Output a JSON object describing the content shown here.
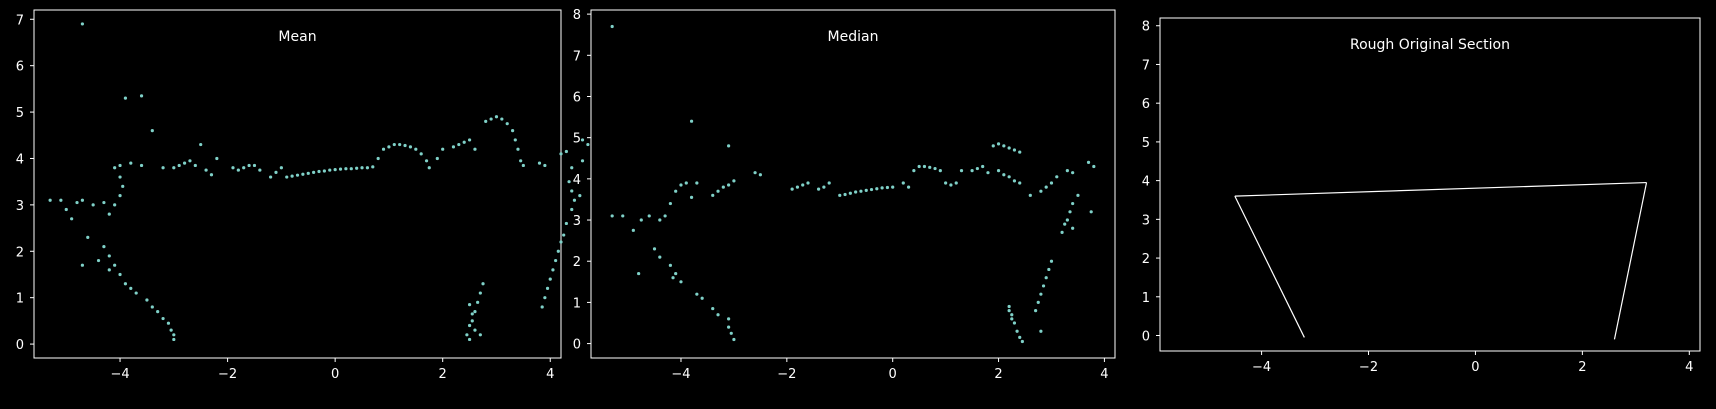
{
  "colors": {
    "background": "#000000",
    "axes": "#ffffff",
    "points": "#7fd1c8",
    "lines": "#ffffff"
  },
  "chart_data": [
    {
      "type": "scatter",
      "title": "Mean",
      "xlim": [
        -5.6,
        4.2
      ],
      "ylim": [
        -0.3,
        7.2
      ],
      "xticks": [
        -4,
        -2,
        0,
        2,
        4
      ],
      "yticks": [
        0,
        1,
        2,
        3,
        4,
        5,
        6,
        7
      ],
      "grid": false,
      "series": [
        {
          "points": [
            [
              -4.7,
              6.9
            ],
            [
              -3.9,
              5.3
            ],
            [
              -3.6,
              5.35
            ],
            [
              -3.4,
              4.6
            ],
            [
              -5.3,
              3.1
            ],
            [
              -5.1,
              3.1
            ],
            [
              -5.0,
              2.9
            ],
            [
              -4.9,
              2.7
            ],
            [
              -4.8,
              3.05
            ],
            [
              -4.7,
              3.1
            ],
            [
              -4.5,
              3.0
            ],
            [
              -4.3,
              3.05
            ],
            [
              -4.2,
              2.8
            ],
            [
              -4.1,
              3.0
            ],
            [
              -4.0,
              3.2
            ],
            [
              -3.95,
              3.4
            ],
            [
              -4.0,
              3.6
            ],
            [
              -4.1,
              3.8
            ],
            [
              -4.0,
              3.85
            ],
            [
              -3.8,
              3.9
            ],
            [
              -3.6,
              3.85
            ],
            [
              -4.6,
              2.3
            ],
            [
              -4.7,
              1.7
            ],
            [
              -4.4,
              1.8
            ],
            [
              -4.3,
              2.1
            ],
            [
              -4.2,
              1.9
            ],
            [
              -4.1,
              1.7
            ],
            [
              -4.0,
              1.5
            ],
            [
              -4.2,
              1.6
            ],
            [
              -3.9,
              1.3
            ],
            [
              -3.8,
              1.2
            ],
            [
              -3.7,
              1.1
            ],
            [
              -3.5,
              0.95
            ],
            [
              -3.4,
              0.8
            ],
            [
              -3.3,
              0.7
            ],
            [
              -3.2,
              0.55
            ],
            [
              -3.1,
              0.45
            ],
            [
              -3.05,
              0.3
            ],
            [
              -3.0,
              0.2
            ],
            [
              -3.0,
              0.1
            ],
            [
              -3.2,
              3.8
            ],
            [
              -3.0,
              3.8
            ],
            [
              -2.9,
              3.85
            ],
            [
              -2.8,
              3.9
            ],
            [
              -2.7,
              3.95
            ],
            [
              -2.6,
              3.85
            ],
            [
              -2.4,
              3.75
            ],
            [
              -2.3,
              3.65
            ],
            [
              -2.5,
              4.3
            ],
            [
              -2.2,
              4.0
            ],
            [
              -1.9,
              3.8
            ],
            [
              -1.8,
              3.75
            ],
            [
              -1.7,
              3.8
            ],
            [
              -1.6,
              3.85
            ],
            [
              -1.5,
              3.85
            ],
            [
              -1.4,
              3.75
            ],
            [
              -1.2,
              3.6
            ],
            [
              -1.1,
              3.7
            ],
            [
              -1.0,
              3.8
            ],
            [
              -0.9,
              3.6
            ],
            [
              -0.8,
              3.62
            ],
            [
              -0.7,
              3.64
            ],
            [
              -0.6,
              3.66
            ],
            [
              -0.5,
              3.68
            ],
            [
              -0.4,
              3.7
            ],
            [
              -0.3,
              3.72
            ],
            [
              -0.2,
              3.73
            ],
            [
              -0.1,
              3.75
            ],
            [
              0.0,
              3.76
            ],
            [
              0.1,
              3.77
            ],
            [
              0.2,
              3.78
            ],
            [
              0.3,
              3.78
            ],
            [
              0.4,
              3.79
            ],
            [
              0.5,
              3.8
            ],
            [
              0.6,
              3.8
            ],
            [
              0.7,
              3.82
            ],
            [
              0.8,
              4.0
            ],
            [
              0.9,
              4.2
            ],
            [
              1.0,
              4.25
            ],
            [
              1.1,
              4.3
            ],
            [
              1.2,
              4.3
            ],
            [
              1.3,
              4.28
            ],
            [
              1.4,
              4.25
            ],
            [
              1.5,
              4.2
            ],
            [
              1.6,
              4.1
            ],
            [
              1.7,
              3.95
            ],
            [
              1.75,
              3.8
            ],
            [
              2.0,
              4.2
            ],
            [
              2.2,
              4.25
            ],
            [
              2.3,
              4.3
            ],
            [
              2.4,
              4.35
            ],
            [
              2.5,
              4.4
            ],
            [
              2.6,
              4.2
            ],
            [
              1.9,
              4.0
            ],
            [
              2.8,
              4.8
            ],
            [
              2.9,
              4.85
            ],
            [
              3.0,
              4.9
            ],
            [
              3.1,
              4.85
            ],
            [
              3.2,
              4.75
            ],
            [
              3.3,
              4.6
            ],
            [
              3.35,
              4.4
            ],
            [
              3.4,
              4.2
            ],
            [
              3.45,
              3.95
            ],
            [
              3.5,
              3.85
            ],
            [
              3.8,
              3.9
            ],
            [
              3.9,
              3.85
            ],
            [
              4.2,
              4.1
            ],
            [
              4.3,
              4.15
            ],
            [
              4.4,
              3.8
            ],
            [
              4.35,
              3.5
            ],
            [
              4.4,
              3.3
            ],
            [
              4.45,
              3.1
            ],
            [
              4.4,
              2.9
            ],
            [
              4.3,
              2.6
            ],
            [
              4.25,
              2.35
            ],
            [
              4.2,
              2.2
            ],
            [
              4.15,
              2.0
            ],
            [
              4.1,
              1.8
            ],
            [
              4.05,
              1.6
            ],
            [
              4.0,
              1.4
            ],
            [
              3.95,
              1.2
            ],
            [
              3.9,
              1.0
            ],
            [
              3.85,
              0.8
            ],
            [
              4.6,
              4.4
            ],
            [
              4.7,
              4.3
            ],
            [
              4.6,
              3.95
            ],
            [
              4.55,
              3.2
            ],
            [
              2.5,
              0.4
            ],
            [
              2.45,
              0.2
            ],
            [
              2.5,
              0.1
            ],
            [
              2.55,
              0.5
            ],
            [
              2.6,
              0.7
            ],
            [
              2.65,
              0.9
            ],
            [
              2.7,
              1.1
            ],
            [
              2.75,
              1.3
            ],
            [
              2.6,
              0.3
            ],
            [
              2.7,
              0.2
            ],
            [
              2.55,
              0.65
            ],
            [
              2.5,
              0.85
            ]
          ]
        }
      ]
    },
    {
      "type": "scatter",
      "title": "Median",
      "xlim": [
        -5.7,
        4.2
      ],
      "ylim": [
        -0.35,
        8.1
      ],
      "xticks": [
        -4,
        -2,
        0,
        2,
        4
      ],
      "yticks": [
        0,
        1,
        2,
        3,
        4,
        5,
        6,
        7,
        8
      ],
      "grid": false,
      "series": [
        {
          "points": [
            [
              -5.3,
              7.7
            ],
            [
              -3.8,
              5.4
            ],
            [
              -3.1,
              4.8
            ],
            [
              -5.3,
              3.1
            ],
            [
              -5.1,
              3.1
            ],
            [
              -4.9,
              2.75
            ],
            [
              -4.75,
              3.0
            ],
            [
              -4.6,
              3.1
            ],
            [
              -4.4,
              3.0
            ],
            [
              -4.3,
              3.1
            ],
            [
              -4.2,
              3.4
            ],
            [
              -4.1,
              3.7
            ],
            [
              -4.0,
              3.85
            ],
            [
              -3.9,
              3.9
            ],
            [
              -3.8,
              3.55
            ],
            [
              -3.7,
              3.9
            ],
            [
              -4.8,
              1.7
            ],
            [
              -4.5,
              2.3
            ],
            [
              -4.4,
              2.1
            ],
            [
              -4.2,
              1.9
            ],
            [
              -4.1,
              1.7
            ],
            [
              -4.0,
              1.5
            ],
            [
              -4.15,
              1.6
            ],
            [
              -3.7,
              1.2
            ],
            [
              -3.6,
              1.1
            ],
            [
              -3.4,
              0.85
            ],
            [
              -3.3,
              0.7
            ],
            [
              -3.1,
              0.4
            ],
            [
              -3.05,
              0.25
            ],
            [
              -3.0,
              0.1
            ],
            [
              -3.1,
              0.6
            ],
            [
              -3.4,
              3.6
            ],
            [
              -3.3,
              3.7
            ],
            [
              -3.2,
              3.8
            ],
            [
              -3.1,
              3.85
            ],
            [
              -3.0,
              3.95
            ],
            [
              -2.6,
              4.15
            ],
            [
              -2.5,
              4.1
            ],
            [
              -1.9,
              3.75
            ],
            [
              -1.8,
              3.8
            ],
            [
              -1.7,
              3.85
            ],
            [
              -1.6,
              3.9
            ],
            [
              -1.4,
              3.75
            ],
            [
              -1.3,
              3.8
            ],
            [
              -1.2,
              3.9
            ],
            [
              -1.0,
              3.6
            ],
            [
              -0.9,
              3.62
            ],
            [
              -0.8,
              3.65
            ],
            [
              -0.7,
              3.68
            ],
            [
              -0.6,
              3.7
            ],
            [
              -0.5,
              3.72
            ],
            [
              -0.4,
              3.74
            ],
            [
              -0.3,
              3.76
            ],
            [
              -0.2,
              3.78
            ],
            [
              -0.1,
              3.79
            ],
            [
              0.0,
              3.8
            ],
            [
              0.3,
              3.8
            ],
            [
              0.2,
              3.9
            ],
            [
              0.4,
              4.2
            ],
            [
              0.5,
              4.3
            ],
            [
              0.6,
              4.3
            ],
            [
              0.7,
              4.28
            ],
            [
              0.8,
              4.25
            ],
            [
              0.9,
              4.2
            ],
            [
              1.0,
              3.9
            ],
            [
              1.1,
              3.85
            ],
            [
              1.2,
              3.9
            ],
            [
              1.3,
              4.2
            ],
            [
              1.5,
              4.2
            ],
            [
              1.6,
              4.25
            ],
            [
              1.7,
              4.3
            ],
            [
              1.8,
              4.15
            ],
            [
              1.9,
              4.8
            ],
            [
              2.0,
              4.85
            ],
            [
              2.1,
              4.8
            ],
            [
              2.2,
              4.75
            ],
            [
              2.3,
              4.7
            ],
            [
              2.4,
              4.65
            ],
            [
              2.0,
              4.2
            ],
            [
              2.1,
              4.1
            ],
            [
              2.2,
              4.05
            ],
            [
              2.3,
              3.95
            ],
            [
              2.4,
              3.9
            ],
            [
              2.6,
              3.6
            ],
            [
              2.8,
              3.7
            ],
            [
              2.9,
              3.8
            ],
            [
              3.0,
              3.9
            ],
            [
              3.1,
              4.05
            ],
            [
              3.3,
              4.2
            ],
            [
              3.4,
              4.15
            ],
            [
              3.5,
              3.6
            ],
            [
              3.4,
              3.4
            ],
            [
              3.35,
              3.2
            ],
            [
              3.3,
              3.0
            ],
            [
              3.25,
              2.9
            ],
            [
              3.2,
              2.7
            ],
            [
              3.0,
              2.0
            ],
            [
              2.95,
              1.8
            ],
            [
              2.9,
              1.6
            ],
            [
              2.85,
              1.4
            ],
            [
              2.8,
              1.2
            ],
            [
              2.75,
              1.0
            ],
            [
              2.7,
              0.8
            ],
            [
              3.7,
              4.4
            ],
            [
              3.8,
              4.3
            ],
            [
              3.75,
              3.2
            ],
            [
              3.4,
              2.8
            ],
            [
              2.2,
              0.9
            ],
            [
              2.25,
              0.7
            ],
            [
              2.3,
              0.5
            ],
            [
              2.35,
              0.3
            ],
            [
              2.4,
              0.15
            ],
            [
              2.45,
              0.05
            ],
            [
              2.2,
              0.8
            ],
            [
              2.25,
              0.6
            ],
            [
              2.8,
              0.3
            ]
          ]
        }
      ]
    },
    {
      "type": "line",
      "title": "Rough Original Section",
      "xlim": [
        -5.9,
        4.2
      ],
      "ylim": [
        -0.4,
        8.2
      ],
      "xticks": [
        -4,
        -2,
        0,
        2,
        4
      ],
      "yticks": [
        0,
        1,
        2,
        3,
        4,
        5,
        6,
        7,
        8
      ],
      "grid": false,
      "series": [
        {
          "points": [
            [
              -4.5,
              3.6
            ],
            [
              3.2,
              3.95
            ]
          ]
        },
        {
          "points": [
            [
              -4.5,
              3.6
            ],
            [
              -3.2,
              -0.05
            ]
          ]
        },
        {
          "points": [
            [
              3.2,
              3.95
            ],
            [
              2.6,
              -0.1
            ]
          ]
        }
      ]
    }
  ]
}
